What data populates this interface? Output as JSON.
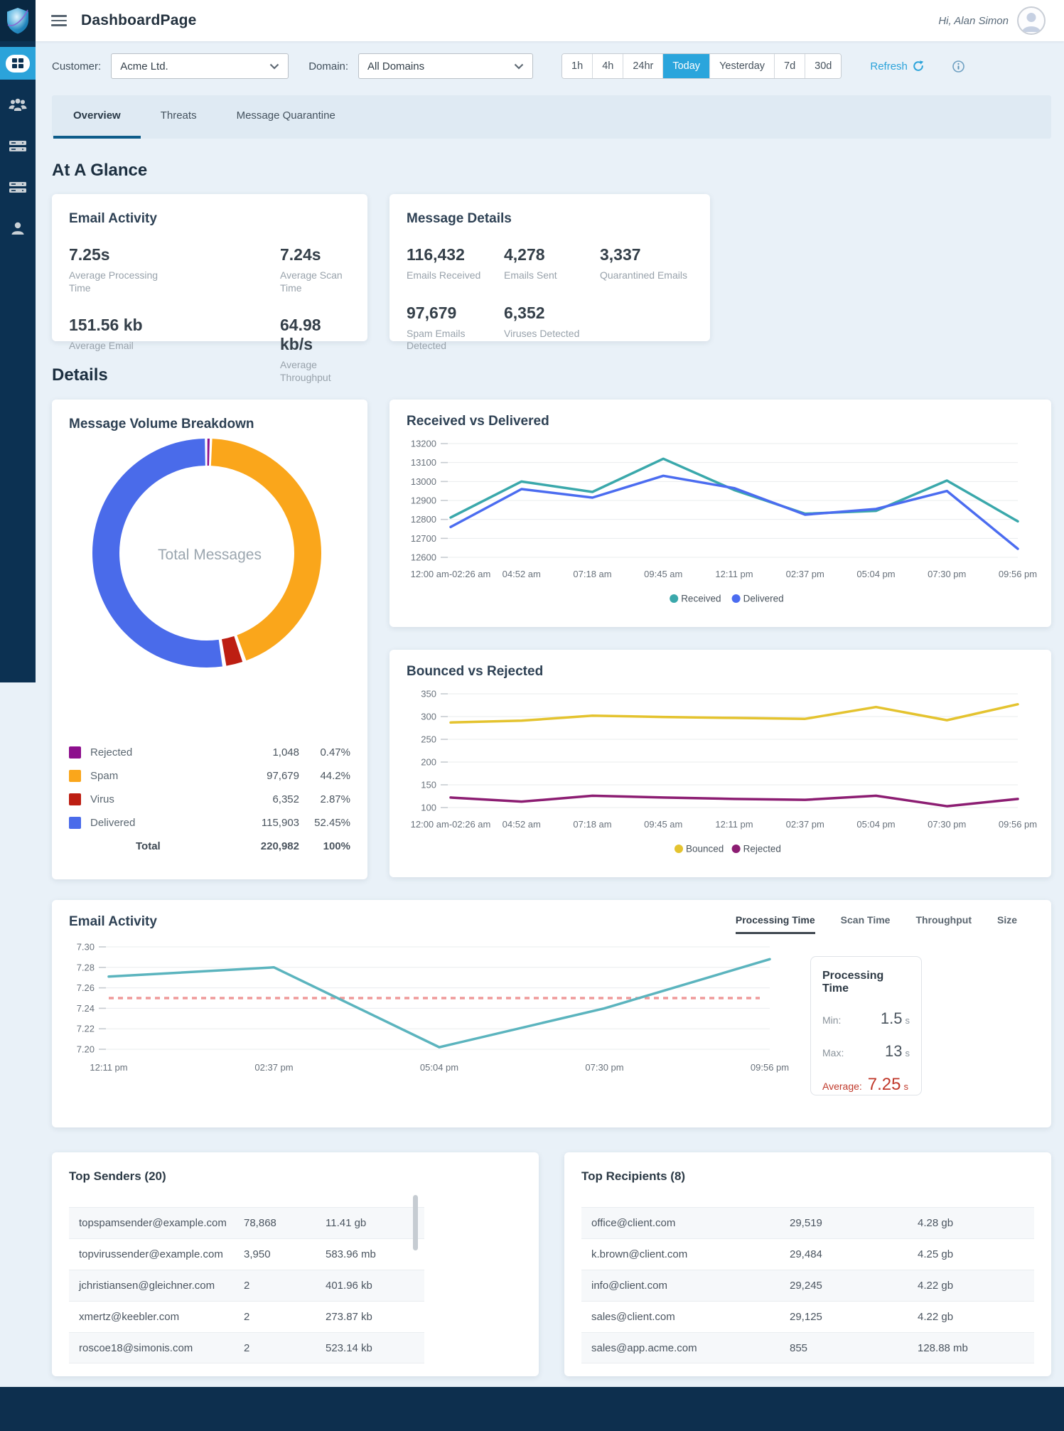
{
  "header": {
    "title": "DashboardPage",
    "greeting": "Hi, Alan Simon"
  },
  "sidebar": {
    "icons": [
      "dashboard-grid",
      "users-group",
      "data-list",
      "data-list",
      "user-account"
    ]
  },
  "filters": {
    "customer_label": "Customer:",
    "customer_value": "Acme Ltd.",
    "domain_label": "Domain:",
    "domain_value": "All Domains",
    "ranges": [
      "1h",
      "4h",
      "24hr",
      "Today",
      "Yesterday",
      "7d",
      "30d"
    ],
    "active_range": "Today",
    "refresh_label": "Refresh"
  },
  "tabs": {
    "overview": "Overview",
    "threats": "Threats",
    "quarantine": "Message Quarantine"
  },
  "headings": {
    "glance": "At A Glance",
    "details": "Details"
  },
  "glance": {
    "email_activity": {
      "title": "Email Activity",
      "metrics": [
        {
          "value": "7.25s",
          "label": "Average Processing Time"
        },
        {
          "value": "7.24s",
          "label": "Average Scan Time"
        },
        {
          "value": "151.56 kb",
          "label": "Average Email"
        },
        {
          "value": "64.98 kb/s",
          "label": "Average Throughput"
        }
      ]
    },
    "message_details": {
      "title": "Message Details",
      "metrics": [
        {
          "value": "116,432",
          "label": "Emails Received"
        },
        {
          "value": "4,278",
          "label": "Emails Sent"
        },
        {
          "value": "3,337",
          "label": "Quarantined Emails"
        },
        {
          "value": "97,679",
          "label": "Spam Emails Detected"
        },
        {
          "value": "6,352",
          "label": "Viruses Detected"
        }
      ]
    }
  },
  "chart_data": [
    {
      "type": "pie",
      "title": "Message Volume Breakdown",
      "center_label": "Total Messages",
      "slices": [
        {
          "label": "Rejected",
          "value": 1048,
          "display": "1,048",
          "percent": "0.47%",
          "color": "#8d0f8d"
        },
        {
          "label": "Spam",
          "value": 97679,
          "display": "97,679",
          "percent": "44.2%",
          "color": "#faa61b"
        },
        {
          "label": "Virus",
          "value": 6352,
          "display": "6,352",
          "percent": "2.87%",
          "color": "#bd1e12"
        },
        {
          "label": "Delivered",
          "value": 115903,
          "display": "115,903",
          "percent": "52.45%",
          "color": "#4a6bea"
        }
      ],
      "total": {
        "label": "Total",
        "display": "220,982",
        "percent": "100%"
      }
    },
    {
      "type": "line",
      "title": "Received vs Delivered",
      "x": [
        "12:00 am-02:26 am",
        "04:52 am",
        "07:18 am",
        "09:45 am",
        "12:11 pm",
        "02:37 pm",
        "05:04 pm",
        "07:30 pm",
        "09:56 pm"
      ],
      "series": [
        {
          "name": "Received",
          "color": "#3aa8ab",
          "values": [
            12810,
            13000,
            12945,
            13120,
            12955,
            12830,
            12845,
            13005,
            12790
          ]
        },
        {
          "name": "Delivered",
          "color": "#4b6cf0",
          "values": [
            12760,
            12960,
            12915,
            13030,
            12965,
            12825,
            12855,
            12950,
            12645
          ]
        }
      ],
      "ylim": [
        12600,
        13200
      ],
      "ystep": 100,
      "ydecimals": 0,
      "grid": true,
      "legend_position": "bottom"
    },
    {
      "type": "line",
      "title": "Bounced vs Rejected",
      "x": [
        "12:00 am-02:26 am",
        "04:52 am",
        "07:18 am",
        "09:45 am",
        "12:11 pm",
        "02:37 pm",
        "05:04 pm",
        "07:30 pm",
        "09:56 pm"
      ],
      "series": [
        {
          "name": "Bounced",
          "color": "#e4c32f",
          "values": [
            287,
            291,
            302,
            299,
            297,
            295,
            321,
            292,
            327
          ]
        },
        {
          "name": "Rejected",
          "color": "#8c1d72",
          "values": [
            122,
            113,
            126,
            122,
            119,
            117,
            126,
            103,
            119
          ]
        }
      ],
      "ylim": [
        100,
        350
      ],
      "ystep": 50,
      "ydecimals": 0,
      "grid": true,
      "legend_position": "bottom"
    },
    {
      "type": "line",
      "title": "Email Activity",
      "x": [
        "12:11 pm",
        "02:37 pm",
        "05:04 pm",
        "07:30 pm",
        "09:56 pm"
      ],
      "series": [
        {
          "name": "Processing Time",
          "color": "#5bb4be",
          "values": [
            7.271,
            7.28,
            7.202,
            7.24,
            7.288
          ]
        }
      ],
      "average_line": {
        "value": 7.25,
        "color": "#ef9a9a"
      },
      "ylim": [
        7.2,
        7.3
      ],
      "ystep": 0.02,
      "ydecimals": 2,
      "grid": true,
      "legend_position": "none"
    }
  ],
  "email_chart": {
    "title": "Email Activity",
    "tabs": [
      "Processing Time",
      "Scan Time",
      "Throughput",
      "Size"
    ],
    "active_tab": "Processing Time",
    "stats": {
      "title": "Processing Time",
      "min_label": "Min:",
      "min_value": "1.5",
      "max_label": "Max:",
      "max_value": "13",
      "avg_label": "Average:",
      "avg_value": "7.25",
      "unit": "s"
    }
  },
  "senders": {
    "title": "Top Senders (20)",
    "rows": [
      {
        "email": "topspamsender@example.com",
        "count": "78,868",
        "size": "11.41 gb"
      },
      {
        "email": "topvirussender@example.com",
        "count": "3,950",
        "size": "583.96 mb"
      },
      {
        "email": "jchristiansen@gleichner.com",
        "count": "2",
        "size": "401.96 kb"
      },
      {
        "email": "xmertz@keebler.com",
        "count": "2",
        "size": "273.87 kb"
      },
      {
        "email": "roscoe18@simonis.com",
        "count": "2",
        "size": "523.14 kb"
      }
    ]
  },
  "recipients": {
    "title": "Top Recipients (8)",
    "rows": [
      {
        "email": "office@client.com",
        "count": "29,519",
        "size": "4.28 gb"
      },
      {
        "email": "k.brown@client.com",
        "count": "29,484",
        "size": "4.25 gb"
      },
      {
        "email": "info@client.com",
        "count": "29,245",
        "size": "4.22 gb"
      },
      {
        "email": "sales@client.com",
        "count": "29,125",
        "size": "4.22 gb"
      },
      {
        "email": "sales@app.acme.com",
        "count": "855",
        "size": "128.88 mb"
      }
    ]
  }
}
